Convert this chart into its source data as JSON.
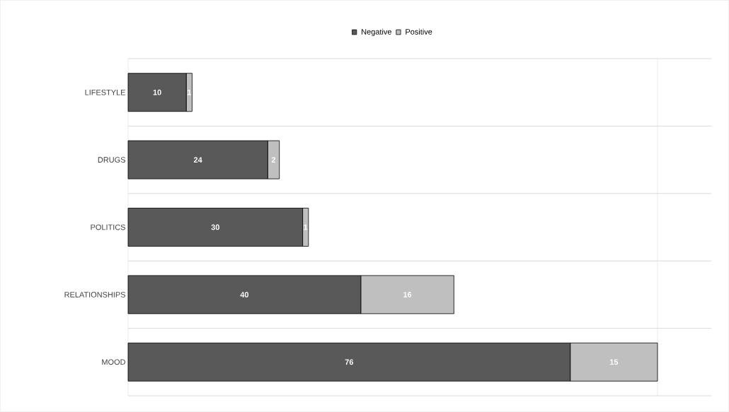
{
  "chart_data": {
    "type": "bar",
    "orientation": "horizontal",
    "stacked": true,
    "categories": [
      "LIFESTYLE",
      "DRUGS",
      "POLITICS",
      "RELATIONSHIPS",
      "MOOD"
    ],
    "series": [
      {
        "name": "Negative",
        "color": "#595959",
        "values": [
          10,
          24,
          30,
          40,
          76
        ]
      },
      {
        "name": "Positive",
        "color": "#bfbfbf",
        "values": [
          1,
          2,
          1,
          16,
          15
        ]
      }
    ],
    "data_labels": true,
    "grid": "y",
    "legend": "top"
  }
}
